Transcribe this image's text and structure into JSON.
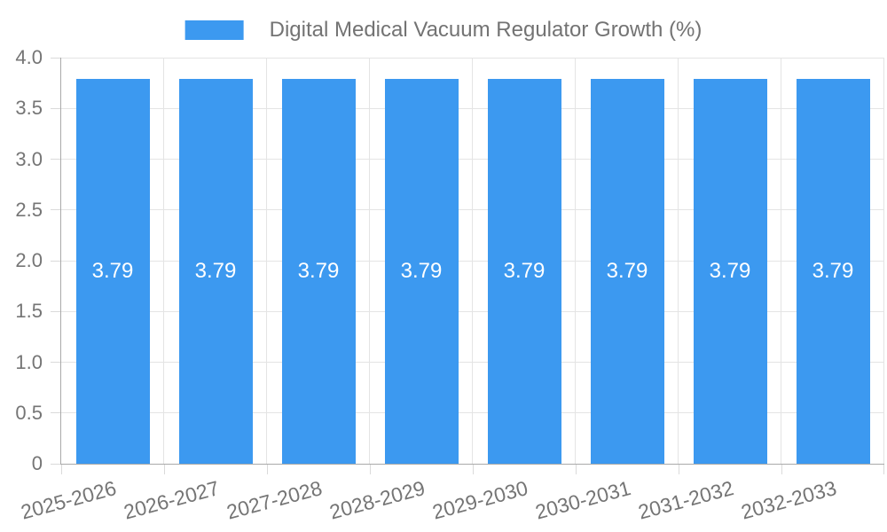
{
  "legend": {
    "series_label": "Digital Medical Vacuum Regulator Growth (%)"
  },
  "colors": {
    "bar": "#3C99F0",
    "axis_text": "#757575",
    "legend_text": "#737373",
    "grid_line": "#E4E4E4",
    "tick_line": "#DADADA",
    "axis_line": "#A9A9A9",
    "value_text": "#FFFFFF",
    "background": "#FFFFFF"
  },
  "chart_data": {
    "type": "bar",
    "title": "Digital Medical Vacuum Regulator Growth (%)",
    "xlabel": "",
    "ylabel": "",
    "categories": [
      "2025-2026",
      "2026-2027",
      "2027-2028",
      "2028-2029",
      "2029-2030",
      "2030-2031",
      "2031-2032",
      "2032-2033"
    ],
    "values": [
      3.79,
      3.79,
      3.79,
      3.79,
      3.79,
      3.79,
      3.79,
      3.79
    ],
    "value_labels": [
      "3.79",
      "3.79",
      "3.79",
      "3.79",
      "3.79",
      "3.79",
      "3.79",
      "3.79"
    ],
    "ylim": [
      0,
      4.0
    ],
    "y_tick_values": [
      0,
      0.5,
      1.0,
      1.5,
      2.0,
      2.5,
      3.0,
      3.5,
      4.0
    ],
    "y_tick_labels": [
      "0",
      "0.5",
      "1.0",
      "1.5",
      "2.0",
      "2.5",
      "3.0",
      "3.5",
      "4.0"
    ],
    "grid": true,
    "legend_position": "top",
    "x_label_rotation_deg": -15
  }
}
